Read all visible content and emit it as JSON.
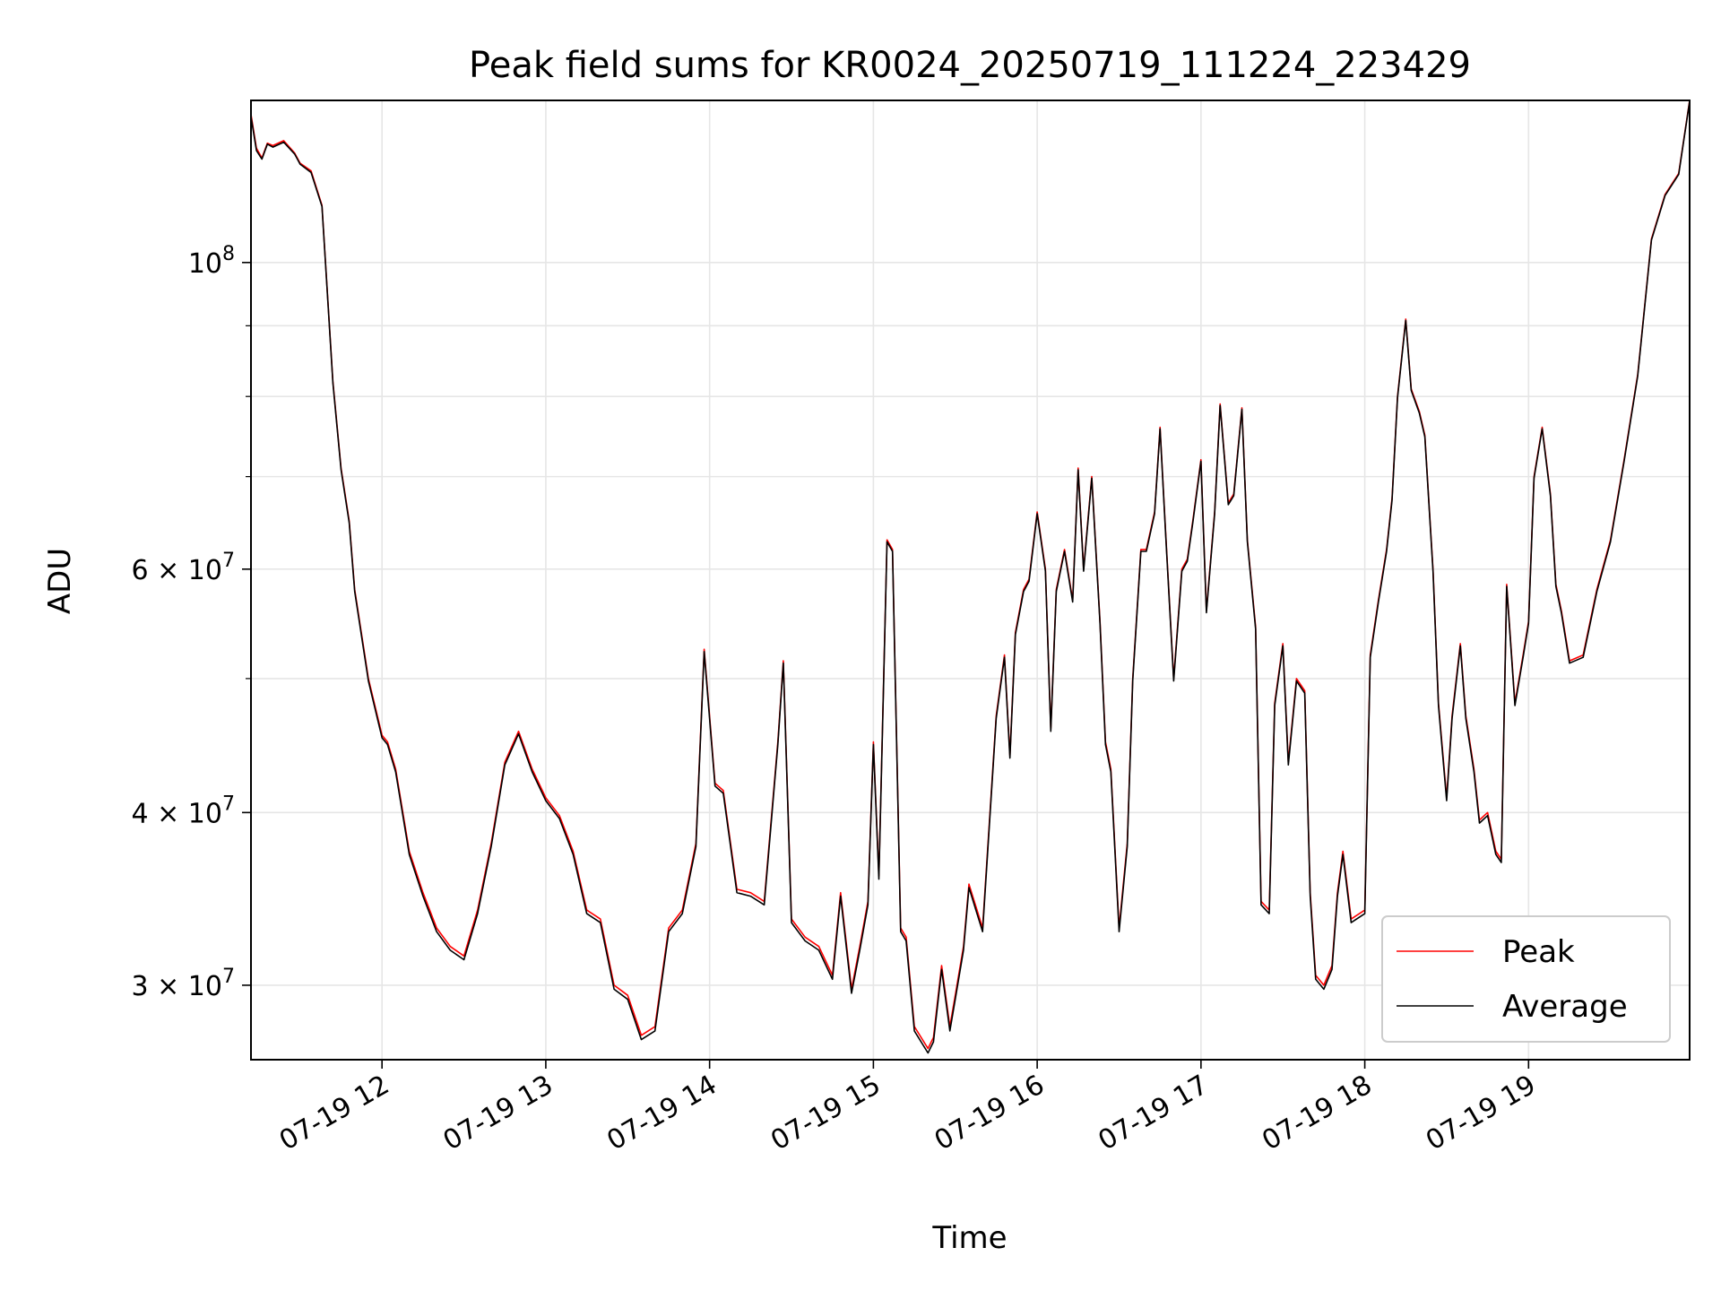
{
  "chart_data": {
    "type": "line",
    "title": "Peak field sums for KR0024_20250719_111224_223429",
    "xlabel": "Time",
    "ylabel": "ADU",
    "yscale": "log",
    "ylim": [
      26500000,
      131000000
    ],
    "xlim": [
      "2025-07-19 11:12",
      "2025-07-19 19:59"
    ],
    "x_ticks": [
      "07-19 12",
      "07-19 13",
      "07-19 14",
      "07-19 15",
      "07-19 16",
      "07-19 17",
      "07-19 18",
      "07-19 19"
    ],
    "y_ticks": [
      {
        "value": 30000000,
        "mant": "3",
        "exp": "7"
      },
      {
        "value": 40000000,
        "mant": "4",
        "exp": "7"
      },
      {
        "value": 60000000,
        "mant": "6",
        "exp": "7"
      },
      {
        "value": 100000000,
        "mant": "",
        "exp": "8"
      }
    ],
    "grid": true,
    "legend": {
      "position": "lower-right",
      "entries": [
        "Peak",
        "Average"
      ]
    },
    "x": [
      "11:12",
      "11:14",
      "11:16",
      "11:18",
      "11:20",
      "11:24",
      "11:28",
      "11:30",
      "11:34",
      "11:38",
      "11:42",
      "11:45",
      "11:48",
      "11:50",
      "11:55",
      "12:00",
      "12:02",
      "12:05",
      "12:10",
      "12:15",
      "12:20",
      "12:25",
      "12:30",
      "12:35",
      "12:40",
      "12:45",
      "12:50",
      "12:55",
      "13:00",
      "13:05",
      "13:10",
      "13:15",
      "13:20",
      "13:25",
      "13:30",
      "13:35",
      "13:40",
      "13:45",
      "13:50",
      "13:55",
      "13:58",
      "14:02",
      "14:05",
      "14:10",
      "14:15",
      "14:20",
      "14:25",
      "14:27",
      "14:30",
      "14:35",
      "14:40",
      "14:45",
      "14:48",
      "14:52",
      "14:55",
      "14:58",
      "15:00",
      "15:02",
      "15:05",
      "15:07",
      "15:10",
      "15:12",
      "15:15",
      "15:20",
      "15:22",
      "15:25",
      "15:28",
      "15:30",
      "15:33",
      "15:35",
      "15:40",
      "15:45",
      "15:48",
      "15:50",
      "15:52",
      "15:55",
      "15:57",
      "16:00",
      "16:03",
      "16:05",
      "16:07",
      "16:10",
      "16:13",
      "16:15",
      "16:17",
      "16:20",
      "16:23",
      "16:25",
      "16:27",
      "16:30",
      "16:33",
      "16:35",
      "16:38",
      "16:40",
      "16:43",
      "16:45",
      "16:47",
      "16:50",
      "16:53",
      "16:55",
      "16:57",
      "17:00",
      "17:02",
      "17:05",
      "17:07",
      "17:10",
      "17:12",
      "17:15",
      "17:17",
      "17:20",
      "17:22",
      "17:25",
      "17:27",
      "17:30",
      "17:32",
      "17:35",
      "17:38",
      "17:40",
      "17:42",
      "17:45",
      "17:48",
      "17:50",
      "17:52",
      "17:55",
      "18:00",
      "18:02",
      "18:05",
      "18:08",
      "18:10",
      "18:12",
      "18:15",
      "18:17",
      "18:20",
      "18:22",
      "18:25",
      "18:27",
      "18:30",
      "18:32",
      "18:35",
      "18:37",
      "18:40",
      "18:42",
      "18:45",
      "18:48",
      "18:50",
      "18:52",
      "18:55",
      "18:58",
      "19:00",
      "19:02",
      "19:05",
      "19:08",
      "19:10",
      "19:12",
      "19:15",
      "19:20",
      "19:25",
      "19:30",
      "19:35",
      "19:40",
      "19:45",
      "19:50",
      "19:55",
      "19:59"
    ],
    "series": [
      {
        "name": "Peak",
        "color": "#ff0000",
        "values": [
          128000000,
          121000000,
          119000000,
          122000000,
          121500000,
          122500000,
          120000000,
          118000000,
          116500000,
          110000000,
          82000000,
          71000000,
          65000000,
          58000000,
          50000000,
          45500000,
          45000000,
          43000000,
          37500000,
          35000000,
          33000000,
          32000000,
          31500000,
          34000000,
          38000000,
          43500000,
          45800000,
          43000000,
          41000000,
          39800000,
          37500000,
          34000000,
          33500000,
          30000000,
          29500000,
          27600000,
          28000000,
          33000000,
          34000000,
          38000000,
          52500000,
          42000000,
          41500000,
          35200000,
          35000000,
          34500000,
          45000000,
          51500000,
          33500000,
          32500000,
          32000000,
          30500000,
          35000000,
          29800000,
          32000000,
          34500000,
          45000000,
          36000000,
          63000000,
          62000000,
          33000000,
          32500000,
          28000000,
          27000000,
          27500000,
          31000000,
          28000000,
          29500000,
          32000000,
          35500000,
          33000000,
          47000000,
          52000000,
          44000000,
          54000000,
          58000000,
          59000000,
          66000000,
          60000000,
          46000000,
          58000000,
          62000000,
          57000000,
          71000000,
          60000000,
          70000000,
          55000000,
          45000000,
          43000000,
          33000000,
          38000000,
          50000000,
          62000000,
          62000000,
          66000000,
          76000000,
          64000000,
          50000000,
          60000000,
          61000000,
          65000000,
          72000000,
          56000000,
          66000000,
          79000000,
          67000000,
          68000000,
          78500000,
          63000000,
          54500000,
          34500000,
          34000000,
          48000000,
          53000000,
          43500000,
          50000000,
          49000000,
          35000000,
          30500000,
          30000000,
          31000000,
          35000000,
          37500000,
          33500000,
          34000000,
          52000000,
          57000000,
          62000000,
          67500000,
          80000000,
          91000000,
          81000000,
          78000000,
          75000000,
          60000000,
          48000000,
          41000000,
          47000000,
          53000000,
          47000000,
          43000000,
          39500000,
          40000000,
          37500000,
          37000000,
          58500000,
          48000000,
          52000000,
          55000000,
          70000000,
          76000000,
          68000000,
          58500000,
          56000000,
          51500000,
          52000000,
          58000000,
          63000000,
          72000000,
          83000000,
          104000000,
          112000000,
          116000000,
          131000000
        ]
      },
      {
        "name": "Average",
        "color": "#000000",
        "values": [
          127500000,
          120500000,
          118800000,
          121800000,
          121200000,
          122200000,
          119800000,
          117800000,
          116200000,
          109800000,
          81800000,
          70800000,
          64800000,
          57800000,
          49800000,
          45300000,
          44800000,
          42800000,
          37300000,
          34800000,
          32800000,
          31800000,
          31300000,
          33800000,
          37800000,
          43300000,
          45600000,
          42800000,
          40800000,
          39600000,
          37300000,
          33800000,
          33300000,
          29800000,
          29300000,
          27400000,
          27800000,
          32800000,
          33800000,
          37800000,
          52300000,
          41800000,
          41300000,
          35000000,
          34800000,
          34300000,
          44800000,
          51300000,
          33300000,
          32300000,
          31800000,
          30300000,
          34800000,
          29600000,
          31800000,
          34300000,
          44800000,
          35800000,
          62800000,
          61800000,
          32800000,
          32300000,
          27800000,
          26800000,
          27300000,
          30800000,
          27800000,
          29300000,
          31800000,
          35300000,
          32800000,
          46800000,
          51800000,
          43800000,
          53800000,
          57800000,
          58800000,
          65800000,
          59800000,
          45800000,
          57800000,
          61800000,
          56800000,
          70800000,
          59800000,
          69800000,
          54800000,
          44800000,
          42800000,
          32800000,
          37800000,
          49800000,
          61800000,
          61800000,
          65800000,
          75800000,
          63800000,
          49800000,
          59800000,
          60800000,
          64800000,
          71800000,
          55800000,
          65800000,
          78800000,
          66800000,
          67800000,
          78300000,
          62800000,
          54300000,
          34300000,
          33800000,
          47800000,
          52800000,
          43300000,
          49800000,
          48800000,
          34800000,
          30300000,
          29800000,
          30800000,
          34800000,
          37300000,
          33300000,
          33800000,
          51800000,
          56800000,
          61800000,
          67300000,
          79800000,
          90800000,
          80800000,
          77800000,
          74800000,
          59800000,
          47800000,
          40800000,
          46800000,
          52800000,
          46800000,
          42800000,
          39300000,
          39800000,
          37300000,
          36800000,
          58300000,
          47800000,
          51800000,
          54800000,
          69800000,
          75800000,
          67800000,
          58300000,
          55800000,
          51300000,
          51800000,
          57800000,
          62800000,
          71800000,
          82800000,
          103800000,
          111800000,
          115800000,
          130800000
        ]
      }
    ]
  }
}
